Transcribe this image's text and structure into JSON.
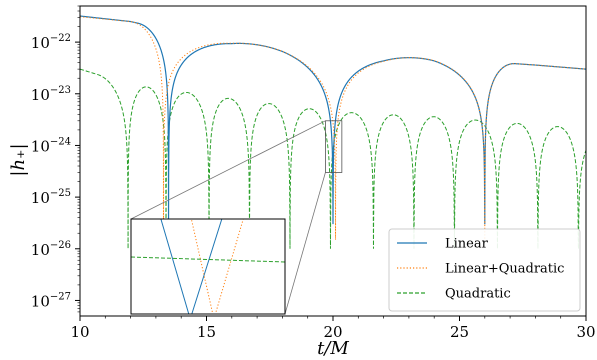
{
  "chart_data": {
    "type": "line",
    "xlabel": "t/M",
    "ylabel": "|h₊|",
    "xlim": [
      10,
      30
    ],
    "ylim": [
      5e-28,
      5e-22
    ],
    "yscale": "log",
    "grid": false,
    "legend_position": "bottom-right",
    "x_ticks": [
      "10",
      "15",
      "20",
      "25",
      "30"
    ],
    "y_ticks": [
      {
        "base": "10",
        "exp": "−22",
        "value": 1e-22
      },
      {
        "base": "10",
        "exp": "−23",
        "value": 1e-23
      },
      {
        "base": "10",
        "exp": "−24",
        "value": 1e-24
      },
      {
        "base": "10",
        "exp": "−25",
        "value": 1e-25
      },
      {
        "base": "10",
        "exp": "−26",
        "value": 1e-26
      },
      {
        "base": "10",
        "exp": "−27",
        "value": 1e-27
      }
    ],
    "series": [
      {
        "name": "Linear",
        "color": "#1f77b4",
        "style": "solid",
        "envelope": [
          [
            10,
            3.2e-22
          ],
          [
            12,
            2.5e-22
          ],
          [
            14,
            1.5e-22
          ],
          [
            16,
            1e-22
          ],
          [
            18,
            8e-23
          ],
          [
            20,
            6e-23
          ],
          [
            22,
            5e-23
          ],
          [
            24,
            5e-23
          ],
          [
            26,
            4.2e-23
          ],
          [
            28,
            3.6e-23
          ],
          [
            30,
            3e-23
          ]
        ],
        "zeros": [
          13.5,
          20.0,
          26.0
        ],
        "floor": 3e-26
      },
      {
        "name": "Linear+Quadratic",
        "color": "#ff7f0e",
        "style": "dotted",
        "envelope": [
          [
            10,
            3.1e-22
          ],
          [
            12,
            2.5e-22
          ],
          [
            14,
            1.5e-22
          ],
          [
            16,
            1e-22
          ],
          [
            18,
            8e-23
          ],
          [
            20,
            6e-23
          ],
          [
            22,
            5e-23
          ],
          [
            24,
            5e-23
          ],
          [
            26,
            4.2e-23
          ],
          [
            28,
            3.6e-23
          ],
          [
            30,
            3e-23
          ]
        ],
        "zeros": [
          13.3,
          20.1,
          26.0
        ],
        "floor": 1.5e-26
      },
      {
        "name": "Quadratic",
        "color": "#2ca02c",
        "style": "dashed",
        "envelope": [
          [
            10,
            3e-23
          ],
          [
            12,
            1.5e-23
          ],
          [
            14,
            1.1e-23
          ],
          [
            16,
            8e-24
          ],
          [
            18,
            6e-24
          ],
          [
            20,
            4.5e-24
          ],
          [
            22,
            4e-24
          ],
          [
            24,
            3.6e-24
          ],
          [
            26,
            3e-24
          ],
          [
            28,
            2.5e-24
          ],
          [
            30,
            2.1e-24
          ]
        ],
        "zeros": [
          11.9,
          13.4,
          15.1,
          16.7,
          18.3,
          19.9,
          21.6,
          23.2,
          24.8,
          26.5,
          28.1,
          29.7
        ],
        "floor": 1e-26
      }
    ]
  }
}
